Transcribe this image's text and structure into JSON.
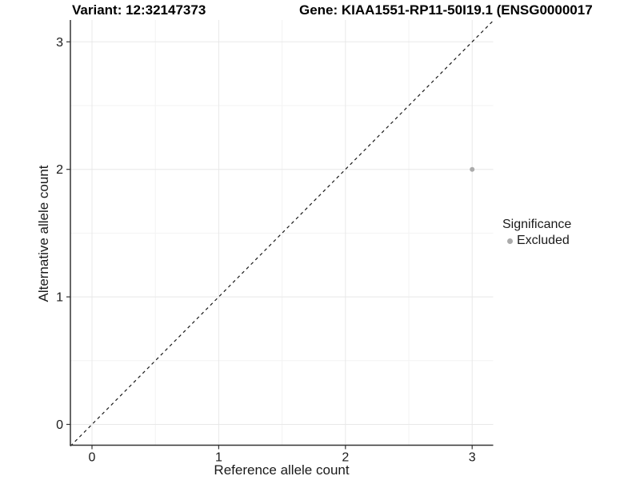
{
  "figure": {
    "variant_title": "Variant: 12:32147373",
    "gene_title": "Gene: KIAA1551-RP11-50I19.1 (ENSG0000017"
  },
  "chart_data": {
    "type": "scatter",
    "title": "Variant: 12:32147373",
    "subtitle": "Gene: KIAA1551-RP11-50I19.1 (ENSG0000017",
    "xlabel": "Reference allele count",
    "ylabel": "Alternative allele count",
    "x_ticks": [
      0,
      1,
      2,
      3
    ],
    "y_ticks": [
      0,
      1,
      2,
      3
    ],
    "x_minor_ticks": [
      0.5,
      1.5,
      2.5
    ],
    "y_minor_ticks": [
      0.5,
      1.5,
      2.5
    ],
    "xlim": [
      -0.17,
      3.17
    ],
    "ylim": [
      -0.17,
      3.17
    ],
    "grid": true,
    "points": [
      {
        "x": 3,
        "y": 2,
        "series": "Excluded"
      }
    ],
    "reference_line": {
      "kind": "identity",
      "style": "dashed",
      "from": [
        -0.17,
        -0.17
      ],
      "to": [
        3.17,
        3.17
      ]
    },
    "legend": {
      "title": "Significance",
      "position": "right",
      "items": [
        {
          "label": "Excluded",
          "color": "#ABABAB"
        }
      ]
    },
    "colors": {
      "point": "#ABABAB",
      "grid_major": "#E8E8E8",
      "grid_minor": "#F3F3F3",
      "axis_line": "#333333",
      "tick_text": "#1a1a1a",
      "dashed_line": "#1a1a1a",
      "background": "#ffffff"
    }
  }
}
